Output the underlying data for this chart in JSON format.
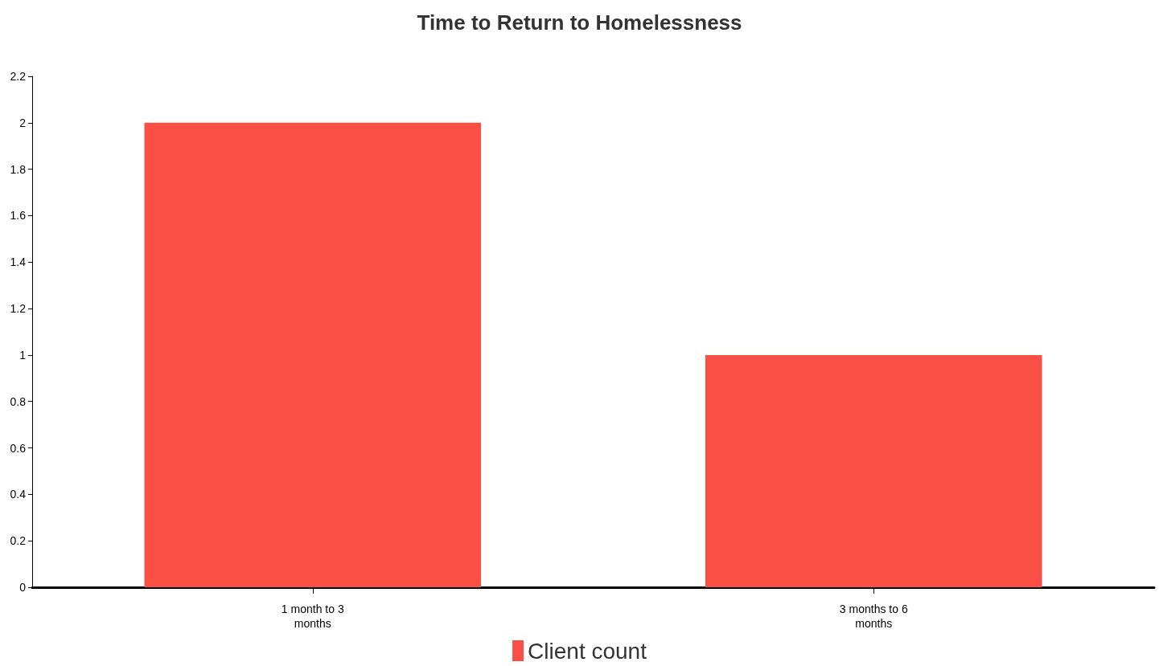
{
  "chart_data": {
    "type": "bar",
    "title": "Time to Return to Homelessness",
    "categories": [
      "1 month to 3\nmonths",
      "3 months to 6\nmonths"
    ],
    "series": [
      {
        "name": "Client count",
        "color": "#fa4f44",
        "values": [
          2,
          1
        ]
      }
    ],
    "ylim": [
      0,
      2.2
    ],
    "yticks": [
      0,
      0.2,
      0.4,
      0.6,
      0.8,
      1,
      1.2,
      1.4,
      1.6,
      1.8,
      2,
      2.2
    ],
    "grid": false,
    "legend": "bottom"
  }
}
